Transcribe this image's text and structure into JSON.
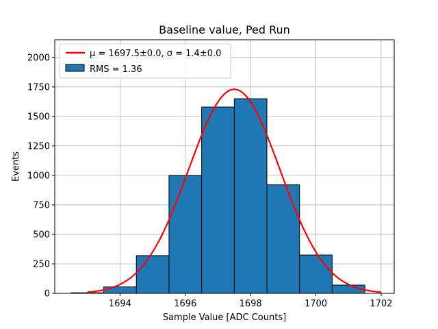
{
  "chart_data": {
    "type": "bar",
    "title": "Baseline value, Ped Run",
    "xlabel": "Sample Value [ADC Counts]",
    "ylabel": "Events",
    "xlim": [
      1692.0,
      1702.4
    ],
    "ylim": [
      0,
      2150
    ],
    "xticks": [
      1694,
      1696,
      1698,
      1700,
      1702
    ],
    "yticks": [
      0,
      250,
      500,
      750,
      1000,
      1250,
      1500,
      1750,
      2000
    ],
    "grid": true,
    "legend_position": "top-left",
    "bins": [
      {
        "x0": 1692.5,
        "x1": 1693.5,
        "value": 5
      },
      {
        "x0": 1693.5,
        "x1": 1694.5,
        "value": 55
      },
      {
        "x0": 1694.5,
        "x1": 1695.5,
        "value": 320
      },
      {
        "x0": 1695.5,
        "x1": 1696.5,
        "value": 1000
      },
      {
        "x0": 1696.5,
        "x1": 1697.5,
        "value": 1580
      },
      {
        "x0": 1697.5,
        "x1": 1698.5,
        "value": 1650
      },
      {
        "x0": 1698.5,
        "x1": 1699.5,
        "value": 920
      },
      {
        "x0": 1699.5,
        "x1": 1700.5,
        "value": 325
      },
      {
        "x0": 1700.5,
        "x1": 1701.5,
        "value": 70
      }
    ],
    "fit": {
      "mu": 1697.5,
      "sigma": 1.4,
      "amplitude": 1730,
      "x_range": [
        1693.0,
        1702.0
      ]
    },
    "series": [
      {
        "name": "μ = 1697.5±0.0, σ = 1.4±0.0",
        "type": "line",
        "color": "#ff0000"
      },
      {
        "name": "RMS = 1.36",
        "type": "bar",
        "color": "#1f77b4"
      }
    ]
  }
}
